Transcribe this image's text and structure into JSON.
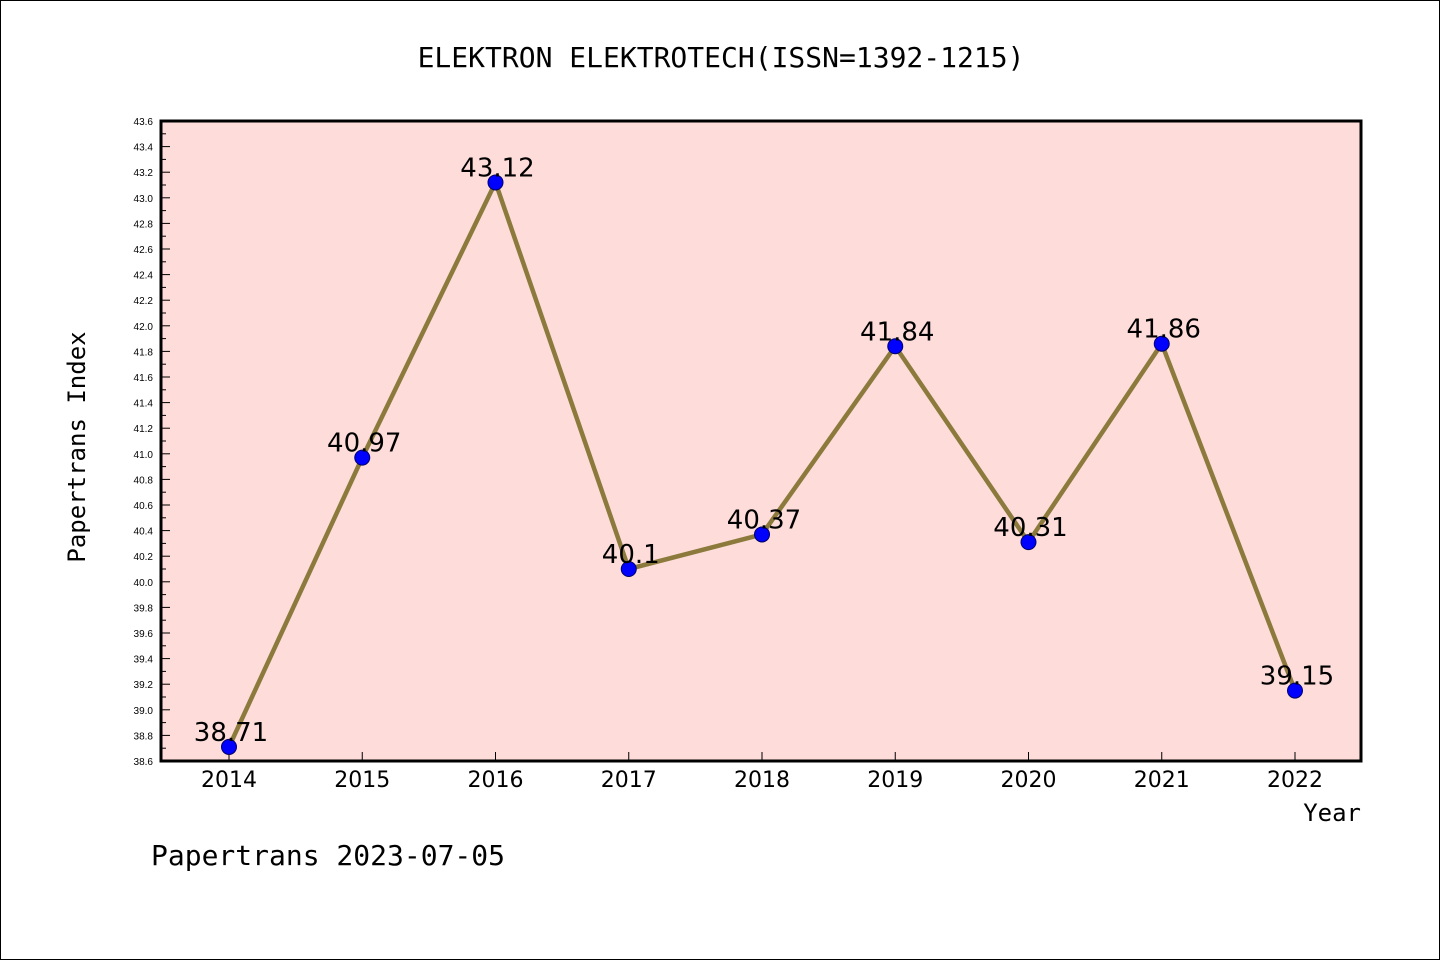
{
  "colors": {
    "plot_background": "#fddcd9",
    "line": "#8b7a3c",
    "marker": "#0000ff",
    "axis": "#000000"
  },
  "chart_data": {
    "type": "line",
    "title": "ELEKTRON ELEKTROTECH(ISSN=1392-1215)",
    "xlabel": "Year",
    "ylabel": "Papertrans Index",
    "categories": [
      "2014",
      "2015",
      "2016",
      "2017",
      "2018",
      "2019",
      "2020",
      "2021",
      "2022"
    ],
    "series": [
      {
        "values": [
          38.71,
          40.97,
          43.12,
          40.1,
          40.37,
          41.84,
          40.31,
          41.86,
          39.15
        ],
        "labels": [
          "38.71",
          "40.97",
          "43.12",
          "40.1",
          "40.37",
          "41.84",
          "40.31",
          "41.86",
          "39.15"
        ]
      }
    ],
    "ylim": [
      38.6,
      43.6
    ],
    "yticks": [
      "38.6",
      "38.8",
      "39.0",
      "39.2",
      "39.4",
      "39.6",
      "39.8",
      "40.0",
      "40.2",
      "40.4",
      "40.6",
      "40.8",
      "41.0",
      "41.2",
      "41.4",
      "41.6",
      "41.8",
      "42.0",
      "42.2",
      "42.4",
      "42.6",
      "42.8",
      "43.0",
      "43.2",
      "43.4",
      "43.6"
    ],
    "grid": false,
    "legend": "none"
  },
  "footer": {
    "text": "Papertrans 2023-07-05"
  }
}
